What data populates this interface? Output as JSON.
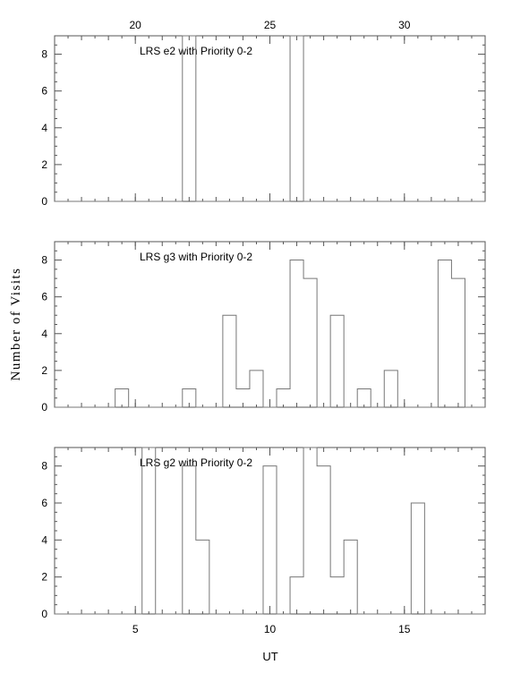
{
  "figure": {
    "ylabel": "Number of Visits",
    "xlabel": "UT",
    "colors": {
      "frame": "#555555",
      "histogram": "#777777",
      "text": "#000000"
    }
  },
  "chart_data": [
    {
      "type": "histogram",
      "annotation": "LRS e2 with Priority 0-2",
      "xlim": [
        2,
        18
      ],
      "ylim": [
        0,
        9
      ],
      "yticks": [
        "0",
        "2",
        "4",
        "6",
        "8"
      ],
      "top_axis": {
        "ticks": [
          "20",
          "25",
          "30"
        ],
        "values": [
          20,
          25,
          30
        ]
      },
      "bin_width": 0.5,
      "bins": [
        {
          "x0": 6.75,
          "x1": 7.25,
          "y": 9
        },
        {
          "x0": 10.75,
          "x1": 11.25,
          "y": 9
        }
      ]
    },
    {
      "type": "histogram",
      "annotation": "LRS g3 with Priority 0-2",
      "xlim": [
        2,
        18
      ],
      "ylim": [
        0,
        9
      ],
      "yticks": [
        "0",
        "2",
        "4",
        "6",
        "8"
      ],
      "bin_width": 0.5,
      "bins": [
        {
          "x0": 4.25,
          "x1": 4.75,
          "y": 1
        },
        {
          "x0": 6.75,
          "x1": 7.25,
          "y": 1
        },
        {
          "x0": 8.25,
          "x1": 8.75,
          "y": 5
        },
        {
          "x0": 8.75,
          "x1": 9.25,
          "y": 1
        },
        {
          "x0": 9.25,
          "x1": 9.75,
          "y": 2
        },
        {
          "x0": 10.25,
          "x1": 10.75,
          "y": 1
        },
        {
          "x0": 10.75,
          "x1": 11.25,
          "y": 8
        },
        {
          "x0": 11.25,
          "x1": 11.75,
          "y": 7
        },
        {
          "x0": 12.25,
          "x1": 12.75,
          "y": 5
        },
        {
          "x0": 13.25,
          "x1": 13.75,
          "y": 1
        },
        {
          "x0": 14.25,
          "x1": 14.75,
          "y": 2
        },
        {
          "x0": 16.25,
          "x1": 16.75,
          "y": 8
        },
        {
          "x0": 16.75,
          "x1": 17.25,
          "y": 7
        }
      ]
    },
    {
      "type": "histogram",
      "annotation": "LRS g2 with Priority 0-2",
      "xlim": [
        2,
        18
      ],
      "ylim": [
        0,
        9
      ],
      "yticks": [
        "0",
        "2",
        "4",
        "6",
        "8"
      ],
      "xticks": [
        "5",
        "10",
        "15"
      ],
      "xtick_values": [
        5,
        10,
        15
      ],
      "bin_width": 0.5,
      "bins": [
        {
          "x0": 5.25,
          "x1": 5.75,
          "y": 9
        },
        {
          "x0": 6.75,
          "x1": 7.25,
          "y": 8
        },
        {
          "x0": 7.25,
          "x1": 7.75,
          "y": 4
        },
        {
          "x0": 9.75,
          "x1": 10.25,
          "y": 8
        },
        {
          "x0": 10.75,
          "x1": 11.25,
          "y": 2
        },
        {
          "x0": 11.25,
          "x1": 11.75,
          "y": 9
        },
        {
          "x0": 11.75,
          "x1": 12.25,
          "y": 8
        },
        {
          "x0": 12.25,
          "x1": 12.75,
          "y": 2
        },
        {
          "x0": 12.75,
          "x1": 13.25,
          "y": 4
        },
        {
          "x0": 15.25,
          "x1": 15.75,
          "y": 6
        }
      ]
    }
  ]
}
